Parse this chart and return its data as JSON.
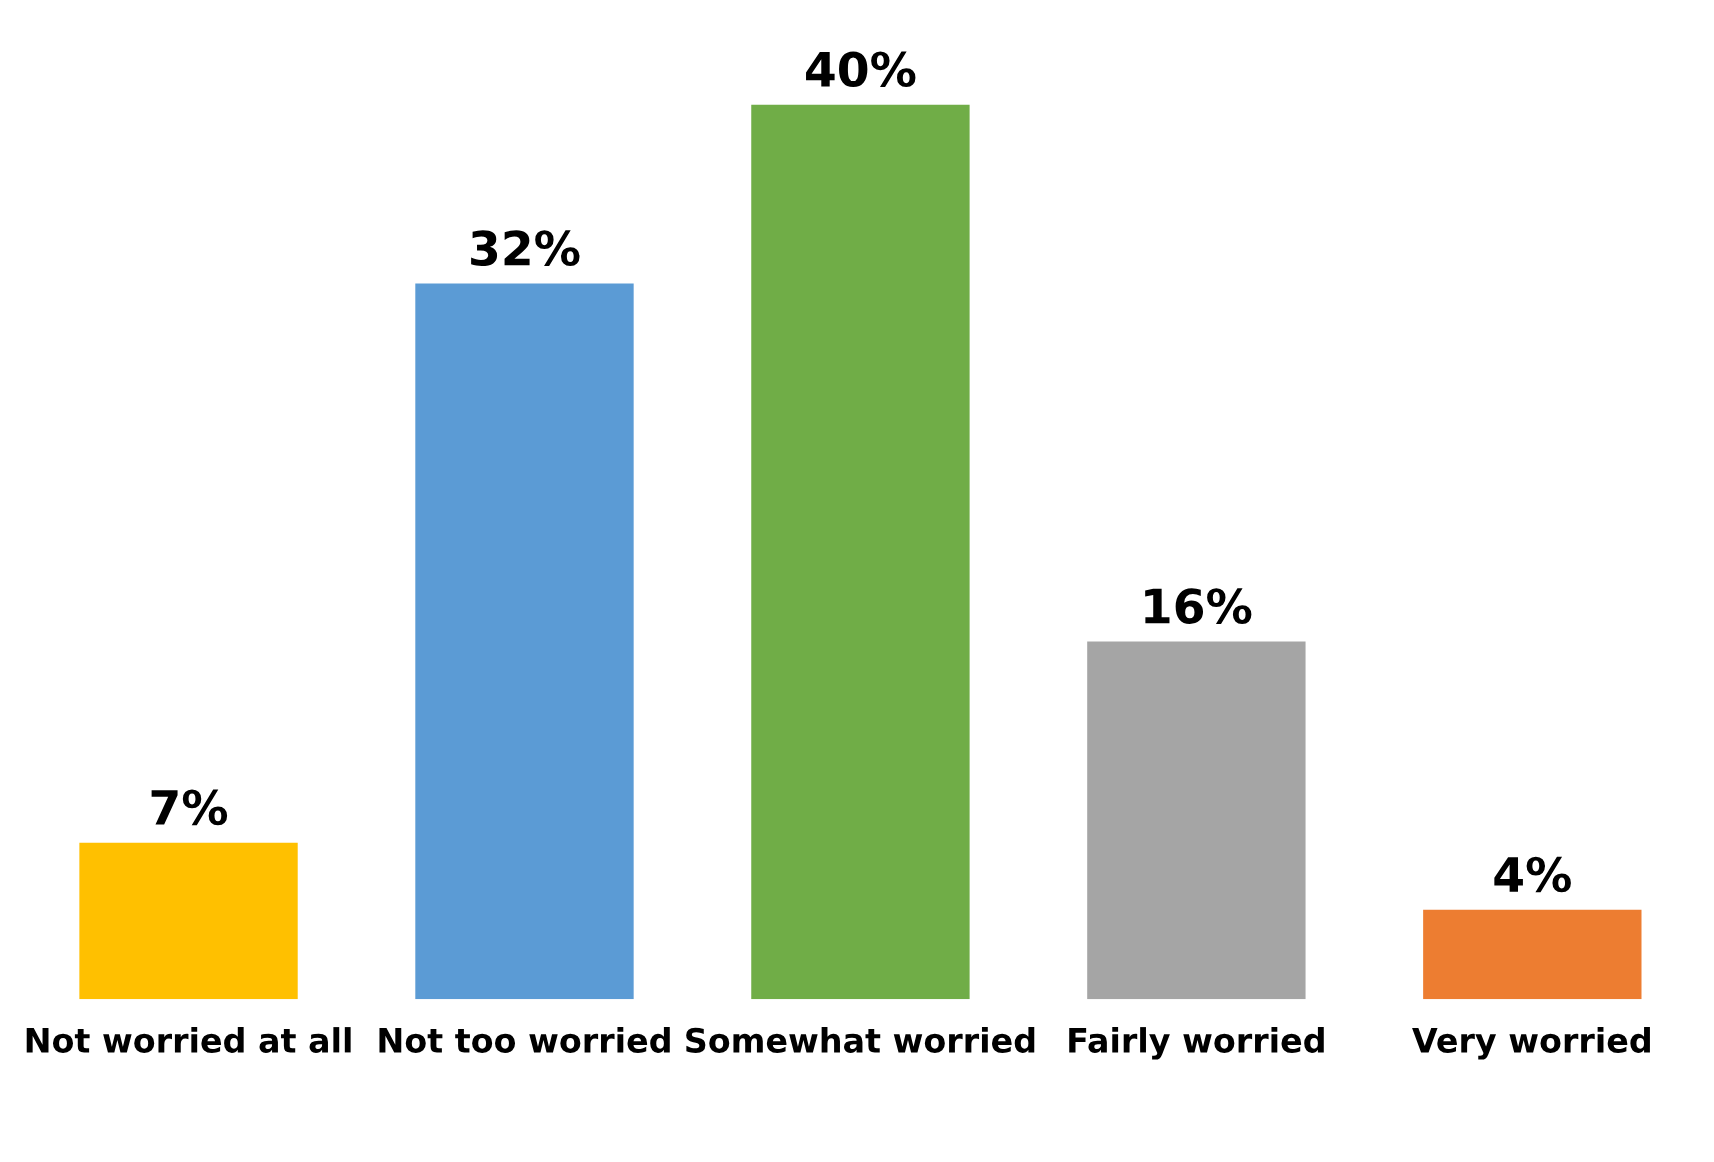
{
  "chart_data": {
    "type": "bar",
    "categories": [
      "Not worried at all",
      "Not too worried",
      "Somewhat worried",
      "Fairly worried",
      "Very worried"
    ],
    "values": [
      7,
      32,
      40,
      16,
      4
    ],
    "colors": [
      "#ffc000",
      "#5b9bd5",
      "#70ad47",
      "#a5a5a5",
      "#ed7d31"
    ],
    "value_labels": [
      "7%",
      "32%",
      "40%",
      "16%",
      "4%"
    ],
    "grid": false,
    "legend": false
  }
}
